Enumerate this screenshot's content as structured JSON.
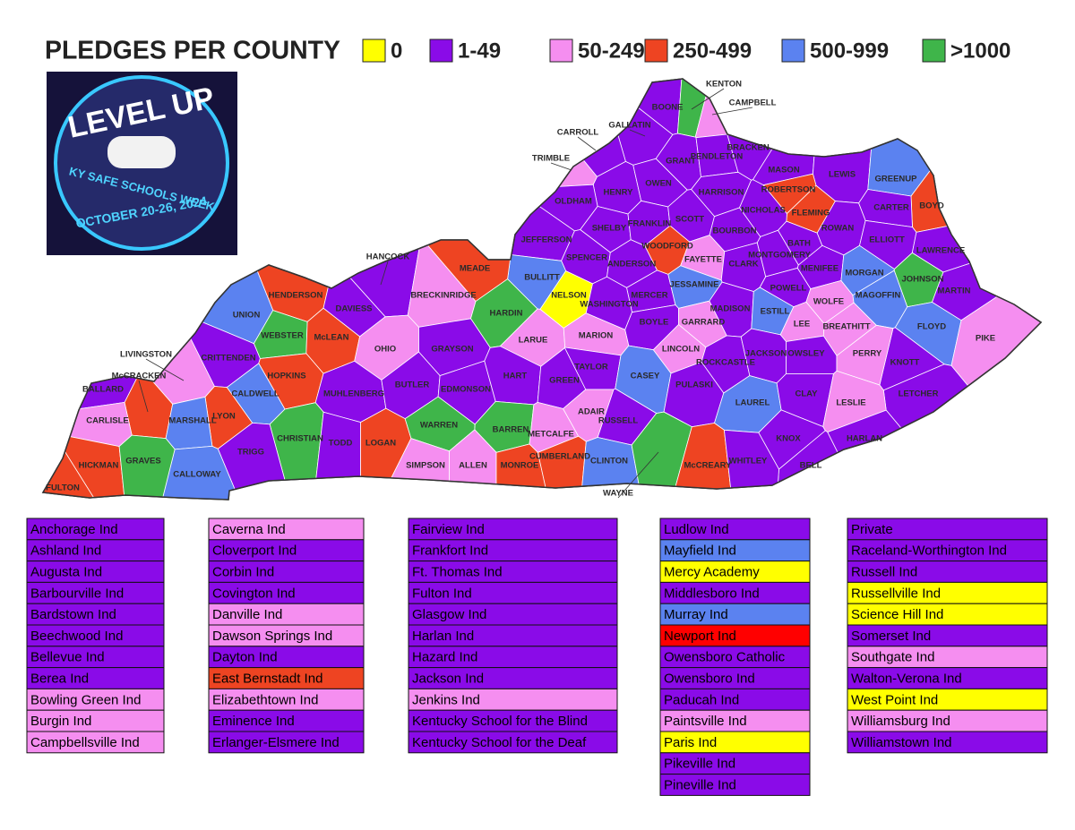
{
  "header": {
    "title": "PLEDGES PER COUNTY",
    "legend": [
      {
        "label": "0",
        "color": "#ffff00"
      },
      {
        "label": "1-49",
        "color": "#8a0be8"
      },
      {
        "label": "50-249",
        "color": "#f58ef0"
      },
      {
        "label": "250-499",
        "color": "#ee4422"
      },
      {
        "label": "500-999",
        "color": "#5b82f0"
      },
      {
        "label": ">1000",
        "color": "#3fb54a"
      }
    ]
  },
  "logo": {
    "title": "LEVEL UP",
    "subtitle": "KY SAFE SCHOOLS WEEK",
    "dates": "OCTOBER 20-26, 2024"
  },
  "map": {
    "counties": [
      {
        "name": "BOONE",
        "color": "#8a0be8"
      },
      {
        "name": "KENTON",
        "color": "#3fb54a"
      },
      {
        "name": "CAMPBELL",
        "color": "#f58ef0"
      },
      {
        "name": "GALLATIN",
        "color": "#8a0be8"
      },
      {
        "name": "CARROLL",
        "color": "#8a0be8"
      },
      {
        "name": "TRIMBLE",
        "color": "#f58ef0"
      },
      {
        "name": "GRANT",
        "color": "#8a0be8"
      },
      {
        "name": "PENDLETON",
        "color": "#8a0be8"
      },
      {
        "name": "BRACKEN",
        "color": "#8a0be8"
      },
      {
        "name": "MASON",
        "color": "#8a0be8"
      },
      {
        "name": "LEWIS",
        "color": "#8a0be8"
      },
      {
        "name": "GREENUP",
        "color": "#5b82f0"
      },
      {
        "name": "BOYD",
        "color": "#ee4422"
      },
      {
        "name": "ROBERTSON",
        "color": "#ee4422"
      },
      {
        "name": "FLEMING",
        "color": "#ee4422"
      },
      {
        "name": "HENRY",
        "color": "#8a0be8"
      },
      {
        "name": "OWEN",
        "color": "#8a0be8"
      },
      {
        "name": "HARRISON",
        "color": "#8a0be8"
      },
      {
        "name": "OLDHAM",
        "color": "#8a0be8"
      },
      {
        "name": "SHELBY",
        "color": "#8a0be8"
      },
      {
        "name": "FRANKLIN",
        "color": "#8a0be8"
      },
      {
        "name": "SCOTT",
        "color": "#8a0be8"
      },
      {
        "name": "BOURBON",
        "color": "#8a0be8"
      },
      {
        "name": "NICHOLAS",
        "color": "#8a0be8"
      },
      {
        "name": "BATH",
        "color": "#8a0be8"
      },
      {
        "name": "ROWAN",
        "color": "#8a0be8"
      },
      {
        "name": "CARTER",
        "color": "#8a0be8"
      },
      {
        "name": "ELLIOTT",
        "color": "#8a0be8"
      },
      {
        "name": "LAWRENCE",
        "color": "#8a0be8"
      },
      {
        "name": "JEFFERSON",
        "color": "#8a0be8"
      },
      {
        "name": "SPENCER",
        "color": "#8a0be8"
      },
      {
        "name": "WOODFORD",
        "color": "#ee4422"
      },
      {
        "name": "FAYETTE",
        "color": "#f58ef0"
      },
      {
        "name": "CLARK",
        "color": "#8a0be8"
      },
      {
        "name": "MONTGOMERY",
        "color": "#8a0be8"
      },
      {
        "name": "MENIFEE",
        "color": "#8a0be8"
      },
      {
        "name": "MORGAN",
        "color": "#5b82f0"
      },
      {
        "name": "JOHNSON",
        "color": "#3fb54a"
      },
      {
        "name": "MARTIN",
        "color": "#8a0be8"
      },
      {
        "name": "BULLITT",
        "color": "#5b82f0"
      },
      {
        "name": "NELSON",
        "color": "#ffff00"
      },
      {
        "name": "ANDERSON",
        "color": "#8a0be8"
      },
      {
        "name": "MERCER",
        "color": "#8a0be8"
      },
      {
        "name": "JESSAMINE",
        "color": "#5b82f0"
      },
      {
        "name": "MADISON",
        "color": "#8a0be8"
      },
      {
        "name": "POWELL",
        "color": "#8a0be8"
      },
      {
        "name": "WOLFE",
        "color": "#f58ef0"
      },
      {
        "name": "MAGOFFIN",
        "color": "#5b82f0"
      },
      {
        "name": "FLOYD",
        "color": "#5b82f0"
      },
      {
        "name": "PIKE",
        "color": "#f58ef0"
      },
      {
        "name": "HANCOCK",
        "color": "#8a0be8"
      },
      {
        "name": "MEADE",
        "color": "#ee4422"
      },
      {
        "name": "BRECKINRIDGE",
        "color": "#f58ef0"
      },
      {
        "name": "HARDIN",
        "color": "#3fb54a"
      },
      {
        "name": "WASHINGTON",
        "color": "#8a0be8"
      },
      {
        "name": "BOYLE",
        "color": "#8a0be8"
      },
      {
        "name": "GARRARD",
        "color": "#f58ef0"
      },
      {
        "name": "ESTILL",
        "color": "#5b82f0"
      },
      {
        "name": "LEE",
        "color": "#f58ef0"
      },
      {
        "name": "BREATHITT",
        "color": "#f58ef0"
      },
      {
        "name": "KNOTT",
        "color": "#8a0be8"
      },
      {
        "name": "HENDERSON",
        "color": "#ee4422"
      },
      {
        "name": "DAVIESS",
        "color": "#8a0be8"
      },
      {
        "name": "UNION",
        "color": "#5b82f0"
      },
      {
        "name": "WEBSTER",
        "color": "#3fb54a"
      },
      {
        "name": "McLEAN",
        "color": "#ee4422"
      },
      {
        "name": "OHIO",
        "color": "#f58ef0"
      },
      {
        "name": "GRAYSON",
        "color": "#8a0be8"
      },
      {
        "name": "LARUE",
        "color": "#f58ef0"
      },
      {
        "name": "MARION",
        "color": "#f58ef0"
      },
      {
        "name": "LINCOLN",
        "color": "#f58ef0"
      },
      {
        "name": "ROCKCASTLE",
        "color": "#8a0be8"
      },
      {
        "name": "JACKSON",
        "color": "#8a0be8"
      },
      {
        "name": "OWSLEY",
        "color": "#8a0be8"
      },
      {
        "name": "PERRY",
        "color": "#f58ef0"
      },
      {
        "name": "LETCHER",
        "color": "#8a0be8"
      },
      {
        "name": "LIVINGSTON",
        "color": "#f58ef0"
      },
      {
        "name": "McCRACKEN",
        "color": "#ee4422"
      },
      {
        "name": "CRITTENDEN",
        "color": "#8a0be8"
      },
      {
        "name": "HOPKINS",
        "color": "#ee4422"
      },
      {
        "name": "MUHLENBERG",
        "color": "#8a0be8"
      },
      {
        "name": "BUTLER",
        "color": "#8a0be8"
      },
      {
        "name": "EDMONSON",
        "color": "#8a0be8"
      },
      {
        "name": "HART",
        "color": "#8a0be8"
      },
      {
        "name": "GREEN",
        "color": "#8a0be8"
      },
      {
        "name": "TAYLOR",
        "color": "#8a0be8"
      },
      {
        "name": "CASEY",
        "color": "#5b82f0"
      },
      {
        "name": "PULASKI",
        "color": "#8a0be8"
      },
      {
        "name": "LAUREL",
        "color": "#5b82f0"
      },
      {
        "name": "CLAY",
        "color": "#8a0be8"
      },
      {
        "name": "LESLIE",
        "color": "#f58ef0"
      },
      {
        "name": "BALLARD",
        "color": "#8a0be8"
      },
      {
        "name": "CALDWELL",
        "color": "#5b82f0"
      },
      {
        "name": "LYON",
        "color": "#ee4422"
      },
      {
        "name": "CARLISLE",
        "color": "#f58ef0"
      },
      {
        "name": "MARSHALL",
        "color": "#5b82f0"
      },
      {
        "name": "CHRISTIAN",
        "color": "#3fb54a"
      },
      {
        "name": "TODD",
        "color": "#8a0be8"
      },
      {
        "name": "LOGAN",
        "color": "#ee4422"
      },
      {
        "name": "WARREN",
        "color": "#3fb54a"
      },
      {
        "name": "BARREN",
        "color": "#3fb54a"
      },
      {
        "name": "METCALFE",
        "color": "#f58ef0"
      },
      {
        "name": "ADAIR",
        "color": "#f58ef0"
      },
      {
        "name": "RUSSELL",
        "color": "#8a0be8"
      },
      {
        "name": "KNOX",
        "color": "#8a0be8"
      },
      {
        "name": "BELL",
        "color": "#8a0be8"
      },
      {
        "name": "HARLAN",
        "color": "#8a0be8"
      },
      {
        "name": "HICKMAN",
        "color": "#ee4422"
      },
      {
        "name": "GRAVES",
        "color": "#3fb54a"
      },
      {
        "name": "TRIGG",
        "color": "#8a0be8"
      },
      {
        "name": "SIMPSON",
        "color": "#f58ef0"
      },
      {
        "name": "ALLEN",
        "color": "#f58ef0"
      },
      {
        "name": "MONROE",
        "color": "#ee4422"
      },
      {
        "name": "CUMBERLAND",
        "color": "#ee4422"
      },
      {
        "name": "CLINTON",
        "color": "#5b82f0"
      },
      {
        "name": "WAYNE",
        "color": "#3fb54a"
      },
      {
        "name": "McCREARY",
        "color": "#ee4422"
      },
      {
        "name": "WHITLEY",
        "color": "#8a0be8"
      },
      {
        "name": "FULTON",
        "color": "#ee4422"
      },
      {
        "name": "CALLOWAY",
        "color": "#5b82f0"
      }
    ]
  },
  "tables": [
    {
      "rows": [
        {
          "name": "Anchorage Ind",
          "color": "#8a0be8"
        },
        {
          "name": "Ashland Ind",
          "color": "#8a0be8"
        },
        {
          "name": "Augusta Ind",
          "color": "#8a0be8"
        },
        {
          "name": "Barbourville Ind",
          "color": "#8a0be8"
        },
        {
          "name": "Bardstown Ind",
          "color": "#8a0be8"
        },
        {
          "name": "Beechwood Ind",
          "color": "#8a0be8"
        },
        {
          "name": "Bellevue Ind",
          "color": "#8a0be8"
        },
        {
          "name": "Berea Ind",
          "color": "#8a0be8"
        },
        {
          "name": "Bowling Green Ind",
          "color": "#f58ef0"
        },
        {
          "name": "Burgin Ind",
          "color": "#f58ef0"
        },
        {
          "name": "Campbellsville Ind",
          "color": "#f58ef0"
        }
      ]
    },
    {
      "rows": [
        {
          "name": "Caverna Ind",
          "color": "#f58ef0"
        },
        {
          "name": "Cloverport Ind",
          "color": "#8a0be8"
        },
        {
          "name": "Corbin Ind",
          "color": "#8a0be8"
        },
        {
          "name": "Covington Ind",
          "color": "#8a0be8"
        },
        {
          "name": "Danville Ind",
          "color": "#f58ef0"
        },
        {
          "name": "Dawson Springs Ind",
          "color": "#f58ef0"
        },
        {
          "name": "Dayton Ind",
          "color": "#8a0be8"
        },
        {
          "name": "East Bernstadt Ind",
          "color": "#ee4422"
        },
        {
          "name": "Elizabethtown Ind",
          "color": "#f58ef0"
        },
        {
          "name": "Eminence Ind",
          "color": "#8a0be8"
        },
        {
          "name": "Erlanger-Elsmere Ind",
          "color": "#8a0be8"
        }
      ]
    },
    {
      "rows": [
        {
          "name": "Fairview Ind",
          "color": "#8a0be8"
        },
        {
          "name": "Frankfort Ind",
          "color": "#8a0be8"
        },
        {
          "name": "Ft. Thomas Ind",
          "color": "#8a0be8"
        },
        {
          "name": "Fulton Ind",
          "color": "#8a0be8"
        },
        {
          "name": "Glasgow Ind",
          "color": "#8a0be8"
        },
        {
          "name": "Harlan Ind",
          "color": "#8a0be8"
        },
        {
          "name": "Hazard Ind",
          "color": "#8a0be8"
        },
        {
          "name": "Jackson Ind",
          "color": "#8a0be8"
        },
        {
          "name": "Jenkins Ind",
          "color": "#f58ef0"
        },
        {
          "name": "Kentucky School for the Blind",
          "color": "#8a0be8"
        },
        {
          "name": "Kentucky School for the Deaf",
          "color": "#8a0be8"
        }
      ]
    },
    {
      "rows": [
        {
          "name": "Ludlow Ind",
          "color": "#8a0be8"
        },
        {
          "name": "Mayfield Ind",
          "color": "#5b82f0"
        },
        {
          "name": "Mercy Academy",
          "color": "#ffff00"
        },
        {
          "name": "Middlesboro Ind",
          "color": "#8a0be8"
        },
        {
          "name": "Murray Ind",
          "color": "#5b82f0"
        },
        {
          "name": "Newport Ind",
          "color": "#ff0000"
        },
        {
          "name": "Owensboro Catholic",
          "color": "#8a0be8"
        },
        {
          "name": "Owensboro Ind",
          "color": "#8a0be8"
        },
        {
          "name": "Paducah Ind",
          "color": "#8a0be8"
        },
        {
          "name": "Paintsville Ind",
          "color": "#f58ef0"
        },
        {
          "name": "Paris Ind",
          "color": "#ffff00"
        },
        {
          "name": "Pikeville Ind",
          "color": "#8a0be8"
        },
        {
          "name": "Pineville Ind",
          "color": "#8a0be8"
        }
      ]
    },
    {
      "rows": [
        {
          "name": "Private",
          "color": "#8a0be8"
        },
        {
          "name": "Raceland-Worthington Ind",
          "color": "#8a0be8"
        },
        {
          "name": "Russell Ind",
          "color": "#8a0be8"
        },
        {
          "name": "Russellville Ind",
          "color": "#ffff00"
        },
        {
          "name": "Science Hill Ind",
          "color": "#ffff00"
        },
        {
          "name": "Somerset Ind",
          "color": "#8a0be8"
        },
        {
          "name": "Southgate Ind",
          "color": "#f58ef0"
        },
        {
          "name": "Walton-Verona Ind",
          "color": "#8a0be8"
        },
        {
          "name": "West Point Ind",
          "color": "#ffff00"
        },
        {
          "name": "Williamsburg Ind",
          "color": "#f58ef0"
        },
        {
          "name": "Williamstown Ind",
          "color": "#8a0be8"
        }
      ]
    }
  ]
}
